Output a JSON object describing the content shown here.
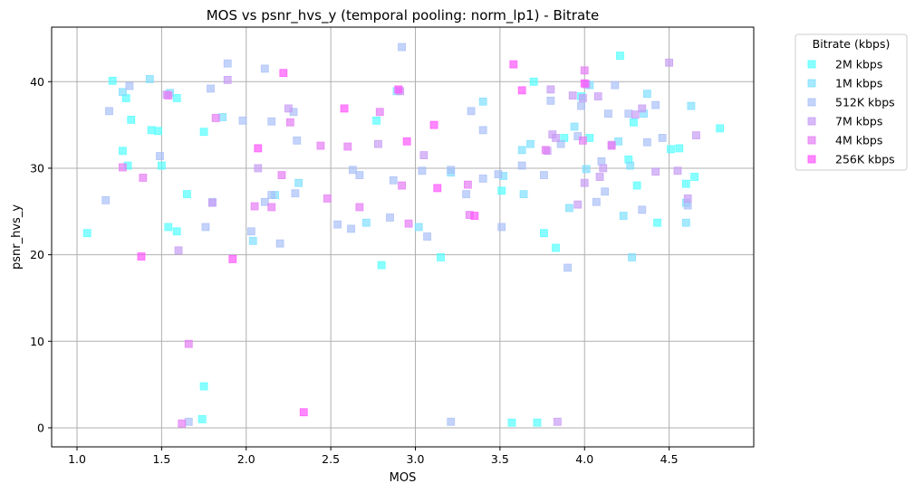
{
  "chart_data": {
    "type": "scatter",
    "title": "MOS vs psnr_hvs_y (temporal pooling: norm_lp1) - Bitrate",
    "xlabel": "MOS",
    "ylabel": "psnr_hvs_y",
    "xlim": [
      0.85,
      5.0
    ],
    "ylim": [
      -2.2,
      46.3
    ],
    "xticks": [
      "1.0",
      "1.5",
      "2.0",
      "2.5",
      "3.0",
      "3.5",
      "4.0",
      "4.5"
    ],
    "yticks": [
      "0",
      "10",
      "20",
      "30",
      "40"
    ],
    "grid": true,
    "legend": {
      "title": "Bitrate (kbps)",
      "placement": "outside-top-right"
    },
    "series": [
      {
        "name": "2M kbps",
        "color": "#55ffff",
        "points": [
          [
            1.06,
            22.5
          ],
          [
            1.21,
            40.1
          ],
          [
            1.27,
            32.0
          ],
          [
            1.29,
            38.1
          ],
          [
            1.3,
            30.3
          ],
          [
            1.32,
            35.6
          ],
          [
            1.44,
            34.4
          ],
          [
            1.48,
            34.3
          ],
          [
            1.5,
            30.3
          ],
          [
            1.54,
            23.2
          ],
          [
            1.59,
            22.7
          ],
          [
            1.59,
            38.1
          ],
          [
            1.65,
            27.0
          ],
          [
            1.75,
            34.2
          ],
          [
            1.75,
            4.8
          ],
          [
            1.74,
            1.0
          ],
          [
            2.8,
            18.8
          ],
          [
            2.77,
            35.5
          ],
          [
            3.15,
            19.7
          ],
          [
            3.51,
            27.4
          ],
          [
            3.57,
            0.6
          ],
          [
            3.72,
            0.6
          ],
          [
            3.7,
            40.0
          ],
          [
            3.76,
            22.5
          ],
          [
            3.83,
            20.8
          ],
          [
            3.88,
            33.5
          ],
          [
            3.98,
            38.3
          ],
          [
            4.03,
            33.5
          ],
          [
            4.21,
            43.0
          ],
          [
            4.26,
            31.0
          ],
          [
            4.31,
            28.0
          ],
          [
            4.29,
            35.3
          ],
          [
            4.43,
            23.7
          ],
          [
            4.51,
            32.2
          ],
          [
            4.56,
            32.3
          ],
          [
            4.6,
            28.2
          ],
          [
            4.65,
            29.0
          ],
          [
            4.8,
            34.6
          ]
        ]
      },
      {
        "name": "1M kbps",
        "color": "#80dfff",
        "points": [
          [
            1.27,
            38.8
          ],
          [
            1.43,
            40.3
          ],
          [
            1.55,
            38.7
          ],
          [
            1.86,
            35.9
          ],
          [
            2.04,
            21.6
          ],
          [
            2.17,
            26.9
          ],
          [
            2.31,
            28.3
          ],
          [
            2.71,
            23.7
          ],
          [
            2.89,
            38.9
          ],
          [
            3.02,
            23.2
          ],
          [
            3.21,
            29.5
          ],
          [
            3.4,
            37.7
          ],
          [
            3.52,
            29.1
          ],
          [
            3.63,
            32.1
          ],
          [
            3.64,
            27.0
          ],
          [
            3.68,
            32.8
          ],
          [
            3.91,
            25.4
          ],
          [
            3.94,
            34.8
          ],
          [
            4.01,
            29.9
          ],
          [
            4.03,
            39.6
          ],
          [
            4.2,
            33.1
          ],
          [
            4.23,
            24.5
          ],
          [
            4.27,
            30.3
          ],
          [
            4.28,
            19.7
          ],
          [
            4.35,
            36.3
          ],
          [
            4.37,
            38.6
          ],
          [
            4.6,
            23.7
          ],
          [
            4.6,
            26.0
          ],
          [
            4.63,
            37.2
          ]
        ]
      },
      {
        "name": "512K kbps",
        "color": "#aac0f8",
        "points": [
          [
            1.17,
            26.3
          ],
          [
            1.19,
            36.6
          ],
          [
            1.31,
            39.5
          ],
          [
            1.49,
            31.4
          ],
          [
            1.66,
            0.7
          ],
          [
            1.76,
            23.2
          ],
          [
            1.79,
            39.2
          ],
          [
            1.8,
            26.1
          ],
          [
            1.89,
            42.1
          ],
          [
            1.98,
            35.5
          ],
          [
            2.03,
            22.7
          ],
          [
            2.11,
            41.5
          ],
          [
            2.11,
            26.1
          ],
          [
            2.15,
            35.4
          ],
          [
            2.15,
            26.9
          ],
          [
            2.2,
            21.3
          ],
          [
            2.28,
            36.5
          ],
          [
            2.3,
            33.2
          ],
          [
            2.29,
            27.1
          ],
          [
            2.54,
            23.5
          ],
          [
            2.62,
            23.0
          ],
          [
            2.63,
            29.8
          ],
          [
            2.67,
            29.2
          ],
          [
            2.85,
            24.3
          ],
          [
            2.87,
            28.6
          ],
          [
            2.92,
            44.0
          ],
          [
            3.04,
            29.7
          ],
          [
            3.07,
            22.1
          ],
          [
            3.21,
            29.8
          ],
          [
            3.21,
            0.7
          ],
          [
            3.3,
            27.0
          ],
          [
            3.33,
            36.6
          ],
          [
            3.4,
            28.8
          ],
          [
            3.4,
            34.4
          ],
          [
            3.49,
            29.3
          ],
          [
            3.51,
            23.2
          ],
          [
            3.63,
            30.3
          ],
          [
            3.76,
            29.2
          ],
          [
            3.8,
            37.8
          ],
          [
            3.86,
            32.8
          ],
          [
            3.9,
            18.5
          ],
          [
            3.96,
            33.7
          ],
          [
            3.98,
            37.2
          ],
          [
            4.07,
            26.1
          ],
          [
            4.1,
            30.8
          ],
          [
            4.12,
            27.3
          ],
          [
            4.14,
            36.3
          ],
          [
            4.18,
            39.6
          ],
          [
            4.26,
            36.3
          ],
          [
            4.34,
            25.2
          ],
          [
            4.37,
            33.0
          ],
          [
            4.42,
            37.3
          ],
          [
            4.46,
            33.5
          ],
          [
            4.61,
            25.7
          ]
        ]
      },
      {
        "name": "7M kbps",
        "color": "#c79df5",
        "points": [
          [
            1.53,
            38.5
          ],
          [
            1.6,
            20.5
          ],
          [
            1.8,
            26.0
          ],
          [
            1.89,
            40.2
          ],
          [
            2.07,
            30.0
          ],
          [
            2.25,
            36.9
          ],
          [
            2.78,
            32.8
          ],
          [
            2.91,
            38.9
          ],
          [
            3.05,
            31.5
          ],
          [
            3.78,
            32.0
          ],
          [
            3.8,
            39.1
          ],
          [
            3.81,
            33.9
          ],
          [
            3.83,
            33.5
          ],
          [
            3.84,
            0.7
          ],
          [
            3.93,
            38.4
          ],
          [
            3.96,
            25.8
          ],
          [
            3.99,
            38.1
          ],
          [
            4.0,
            28.3
          ],
          [
            4.01,
            39.7
          ],
          [
            4.08,
            38.3
          ],
          [
            4.09,
            29.0
          ],
          [
            4.11,
            30.0
          ],
          [
            4.16,
            32.7
          ],
          [
            4.3,
            36.2
          ],
          [
            4.34,
            36.9
          ],
          [
            4.42,
            29.6
          ],
          [
            4.5,
            42.2
          ],
          [
            4.55,
            29.7
          ],
          [
            4.61,
            26.5
          ],
          [
            4.66,
            33.8
          ]
        ]
      },
      {
        "name": "4M kbps",
        "color": "#e57ef5",
        "points": [
          [
            1.27,
            30.1
          ],
          [
            1.39,
            28.9
          ],
          [
            1.54,
            38.4
          ],
          [
            1.62,
            0.5
          ],
          [
            1.66,
            9.7
          ],
          [
            1.82,
            35.8
          ],
          [
            2.05,
            25.6
          ],
          [
            2.15,
            25.5
          ],
          [
            2.21,
            29.2
          ],
          [
            2.26,
            35.3
          ],
          [
            2.44,
            32.6
          ],
          [
            2.48,
            26.5
          ],
          [
            2.6,
            32.5
          ],
          [
            2.67,
            25.5
          ],
          [
            2.79,
            36.5
          ],
          [
            2.92,
            28.0
          ],
          [
            2.96,
            23.6
          ],
          [
            3.31,
            28.1
          ],
          [
            3.32,
            24.6
          ],
          [
            3.77,
            32.1
          ],
          [
            3.99,
            33.2
          ],
          [
            4.0,
            41.3
          ],
          [
            4.16,
            32.6
          ]
        ]
      },
      {
        "name": "256K kbps",
        "color": "#ff55ff",
        "points": [
          [
            1.38,
            19.8
          ],
          [
            1.92,
            19.5
          ],
          [
            2.07,
            32.3
          ],
          [
            2.22,
            41.0
          ],
          [
            2.34,
            1.8
          ],
          [
            2.58,
            36.9
          ],
          [
            2.9,
            39.1
          ],
          [
            2.95,
            33.1
          ],
          [
            3.11,
            35.0
          ],
          [
            3.13,
            27.7
          ],
          [
            3.35,
            24.5
          ],
          [
            3.58,
            42.0
          ],
          [
            3.63,
            39.0
          ],
          [
            4.0,
            39.8
          ]
        ]
      }
    ]
  }
}
